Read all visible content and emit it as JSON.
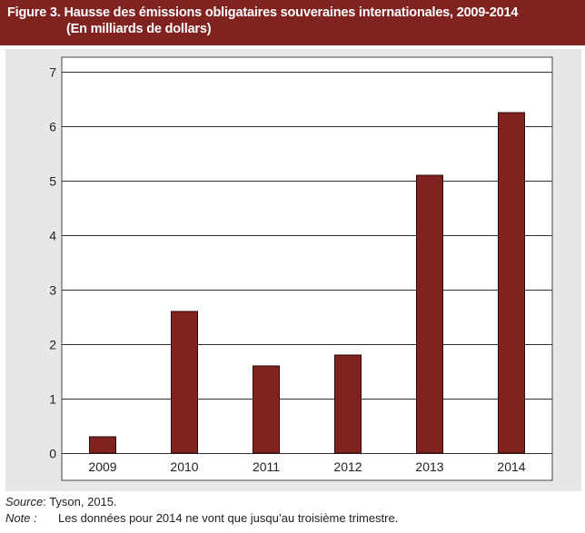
{
  "colors": {
    "title_bg": "#7f2220",
    "panel_bg": "#e7e7e8",
    "plot_bg": "#ffffff",
    "bar": "#7f2220",
    "bar_outline": "#2a0a09",
    "gridline": "#333333"
  },
  "header": {
    "title_line1": "Figure 3. Hausse des émissions obligataires souveraines internationales, 2009-2014",
    "title_line2": "(En milliards de dollars)"
  },
  "chart_data": {
    "type": "bar",
    "categories": [
      "2009",
      "2010",
      "2011",
      "2012",
      "2013",
      "2014"
    ],
    "values": [
      0.3,
      2.6,
      1.6,
      1.8,
      5.1,
      6.25
    ],
    "ylim": [
      0,
      7
    ],
    "yticks": [
      0,
      1,
      2,
      3,
      4,
      5,
      6,
      7
    ],
    "grid": true,
    "legend": "none"
  },
  "footer": {
    "source_label": "Source",
    "source_text": " : Tyson, 2015.",
    "note_label": "Note :",
    "note_text": "Les données pour 2014 ne vont que jusqu’au troisième trimestre."
  }
}
